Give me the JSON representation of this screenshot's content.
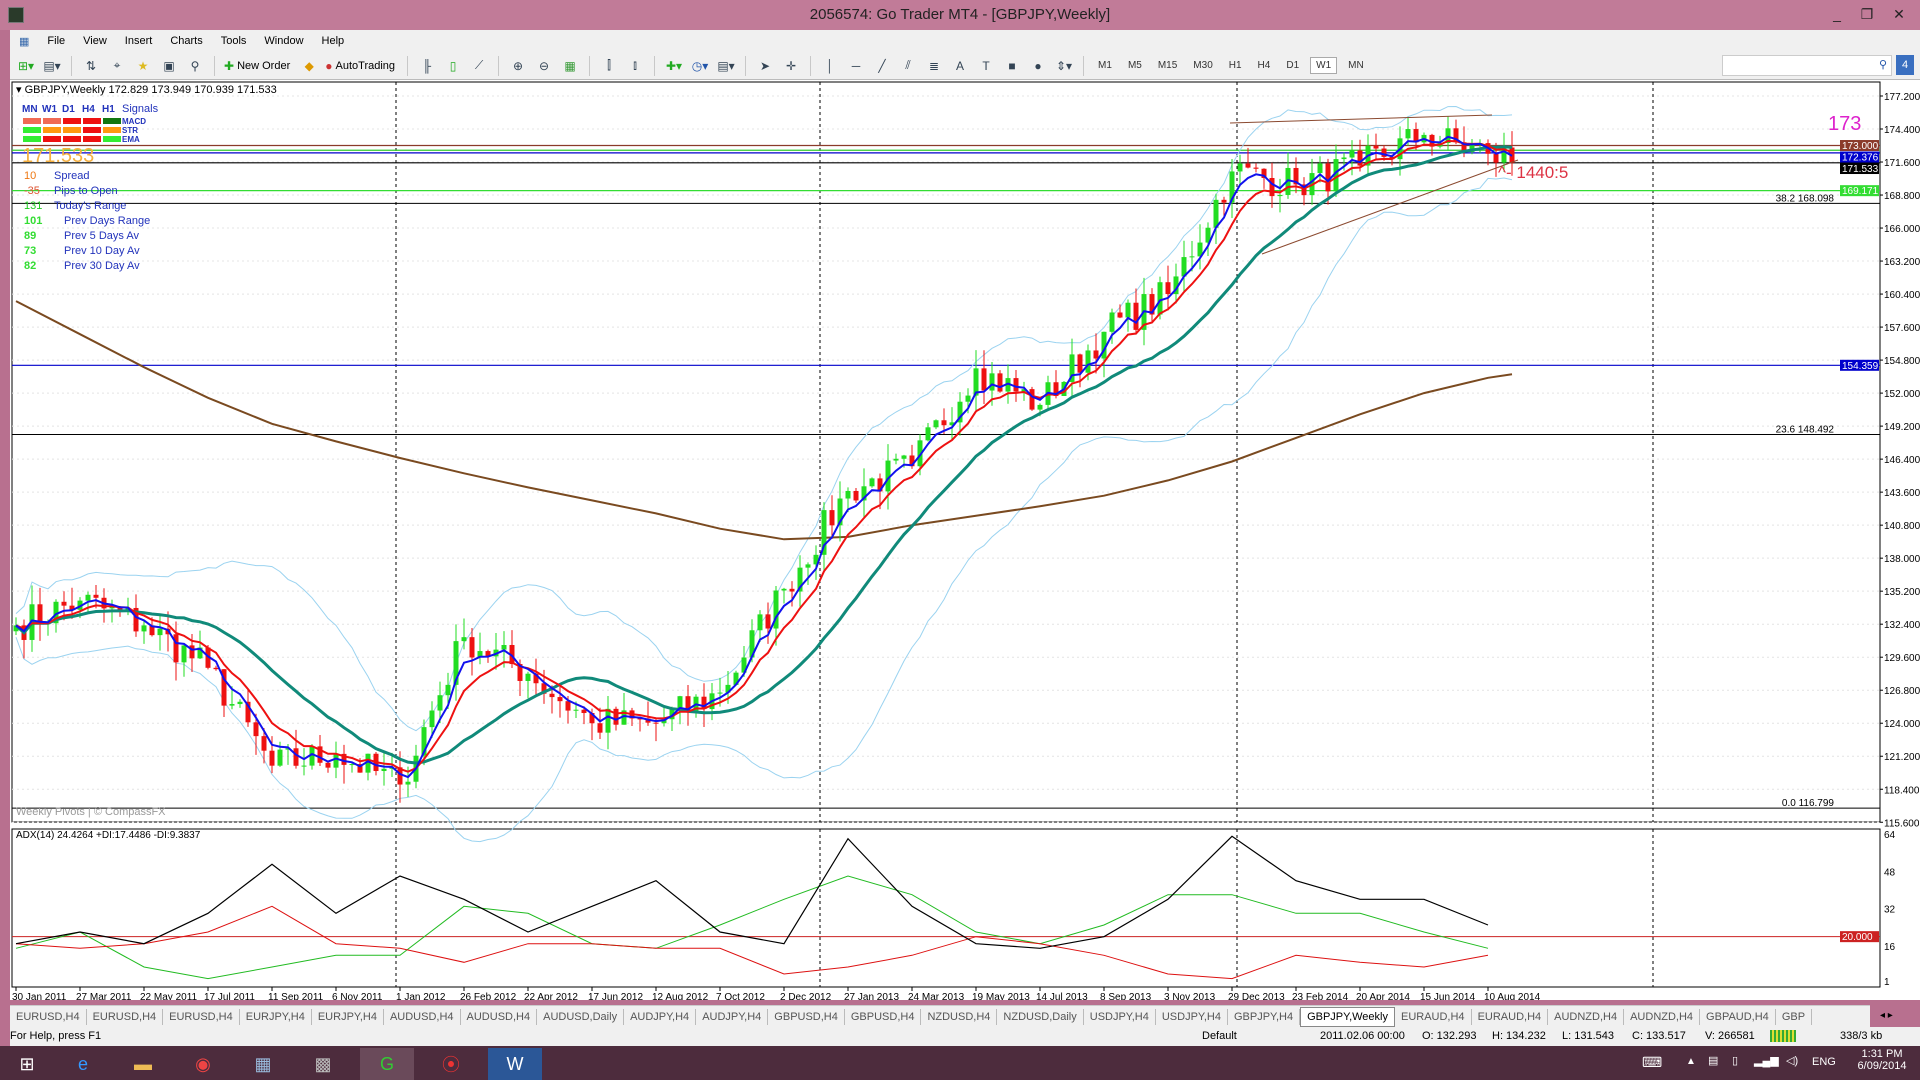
{
  "window": {
    "title": "2056574: Go Trader MT4 - [GBPJPY,Weekly]",
    "controls": [
      "_",
      "❐",
      "✕"
    ]
  },
  "menu": [
    "File",
    "View",
    "Insert",
    "Charts",
    "Tools",
    "Window",
    "Help"
  ],
  "toolbar": {
    "new_order": "New Order",
    "autotrading": "AutoTrading",
    "timeframes": [
      "M1",
      "M5",
      "M15",
      "M30",
      "H1",
      "H4",
      "D1",
      "W1",
      "MN"
    ],
    "active_timeframe": "W1"
  },
  "chart": {
    "header": "GBPJPY,Weekly  172.829 173.949 170.939 171.533",
    "signals": {
      "columns": [
        "MN",
        "W1",
        "D1",
        "H4",
        "H1"
      ],
      "title": "Signals",
      "rows": [
        {
          "name": "MACD",
          "colors": [
            "#f06a55",
            "#f06a55",
            "#ee1111",
            "#ee1111",
            "#117711"
          ]
        },
        {
          "name": "STR",
          "colors": [
            "#33ee33",
            "#ff9911",
            "#ff9911",
            "#ee1111",
            "#ff9911"
          ]
        },
        {
          "name": "EMA",
          "colors": [
            "#33ee33",
            "#ee1111",
            "#ee1111",
            "#ee1111",
            "#33ee33"
          ]
        }
      ]
    },
    "price_big": "171.533",
    "stats": [
      {
        "value": "10",
        "label": "Spread",
        "color": "#ee7711"
      },
      {
        "value": "-35",
        "label": "Pips to Open",
        "color": "#dd5533"
      },
      {
        "value": "131",
        "label": "Today's Range",
        "color": "#22cc22"
      },
      {
        "value": "101",
        "label": "Prev Days Range",
        "color": "#33dd33"
      },
      {
        "value": "89",
        "label": "Prev 5 Days Av",
        "color": "#33dd33"
      },
      {
        "value": "73",
        "label": "Prev 10 Day Av",
        "color": "#33dd33"
      },
      {
        "value": "82",
        "label": "Prev 30 Day Av",
        "color": "#33dd33"
      }
    ],
    "big_label": "173",
    "annotation": "^- 1440:5",
    "watermark": "Weekly Pivots | © CompassFX",
    "fib_labels": [
      {
        "level": "38.2",
        "price": 168.098
      },
      {
        "level": "23.6",
        "price": 148.492
      },
      {
        "level": "0.0",
        "price": 116.799
      }
    ],
    "hlines": [
      {
        "price": 173.0,
        "color": "#8b3a2a",
        "tag": "173.000"
      },
      {
        "price": 172.6,
        "color": "#33cc33",
        "tag": ""
      },
      {
        "price": 172.376,
        "color": "#0000cc",
        "tag": "172.376"
      },
      {
        "price": 171.533,
        "color": "#000000",
        "tag": "171.533"
      },
      {
        "price": 169.171,
        "color": "#33dd33",
        "tag": "169.171"
      },
      {
        "price": 154.359,
        "color": "#0000cc",
        "tag": "154.359"
      }
    ],
    "adx_header": "ADX(14) 24.4264 +DI:17.4486 -DI:9.3837",
    "adx_level": {
      "value": 20,
      "tag": "20.000",
      "color": "#cc2222"
    }
  },
  "chart_data": {
    "type": "candlestick",
    "symbol": "GBPJPY",
    "timeframe": "Weekly",
    "ohlc_last": {
      "open": 172.829,
      "high": 173.949,
      "low": 170.939,
      "close": 171.533
    },
    "x_ticks": [
      "30 Jan 2011",
      "27 Mar 2011",
      "22 May 2011",
      "17 Jul 2011",
      "11 Sep 2011",
      "6 Nov 2011",
      "1 Jan 2012",
      "26 Feb 2012",
      "22 Apr 2012",
      "17 Jun 2012",
      "12 Aug 2012",
      "7 Oct 2012",
      "2 Dec 2012",
      "27 Jan 2013",
      "24 Mar 2013",
      "19 May 2013",
      "14 Jul 2013",
      "8 Sep 2013",
      "3 Nov 2013",
      "29 Dec 2013",
      "23 Feb 2014",
      "20 Apr 2014",
      "15 Jun 2014",
      "10 Aug 2014"
    ],
    "close_at_ticks": [
      132.3,
      134.4,
      132.3,
      128.7,
      120.4,
      121.4,
      118.8,
      131.3,
      128.2,
      124.0,
      124.0,
      126.6,
      135.4,
      143.7,
      145.8,
      154.1,
      151.0,
      157.2,
      160.4,
      170.8,
      169.7,
      171.3,
      173.9,
      172.3
    ],
    "ma200_at_ticks": [
      159.8,
      157.0,
      154.2,
      151.6,
      149.4,
      147.9,
      146.5,
      145.2,
      144.0,
      142.9,
      141.8,
      140.5,
      139.6,
      139.8,
      140.8,
      141.6,
      142.4,
      143.3,
      144.6,
      146.2,
      148.2,
      150.2,
      152.0,
      153.3
    ],
    "y_ticks": [
      177.2,
      174.4,
      171.6,
      168.8,
      166.0,
      163.2,
      160.4,
      157.6,
      154.8,
      152.0,
      149.2,
      146.4,
      143.6,
      140.8,
      138.0,
      135.2,
      132.4,
      129.6,
      126.8,
      124.0,
      121.2,
      118.4,
      115.6
    ],
    "ylim": [
      115.6,
      177.2
    ],
    "adx": {
      "y_ticks": [
        64,
        48,
        32,
        16,
        1
      ],
      "ylim": [
        1,
        64
      ],
      "adx_at_ticks": [
        17,
        22,
        17,
        30,
        51,
        30,
        46,
        36,
        22,
        33,
        44,
        22,
        17,
        62,
        33,
        17,
        15,
        20,
        36,
        63,
        44,
        36,
        36,
        25
      ],
      "plus_di_at_ticks": [
        15,
        22,
        7,
        2,
        7,
        12,
        12,
        33,
        30,
        17,
        15,
        25,
        36,
        46,
        38,
        22,
        17,
        25,
        38,
        38,
        30,
        30,
        22,
        15
      ],
      "minus_di_at_ticks": [
        17,
        15,
        17,
        22,
        33,
        17,
        15,
        9,
        17,
        17,
        15,
        15,
        4,
        7,
        12,
        20,
        17,
        12,
        4,
        2,
        12,
        9,
        7,
        12
      ]
    }
  },
  "tabs": [
    "EURUSD,H4",
    "EURUSD,H4",
    "EURUSD,H4",
    "EURJPY,H4",
    "EURJPY,H4",
    "AUDUSD,H4",
    "AUDUSD,H4",
    "AUDUSD,Daily",
    "AUDJPY,H4",
    "AUDJPY,H4",
    "GBPUSD,H4",
    "GBPUSD,H4",
    "NZDUSD,H4",
    "NZDUSD,Daily",
    "USDJPY,H4",
    "USDJPY,H4",
    "GBPJPY,H4",
    "GBPJPY,Weekly",
    "EURAUD,H4",
    "EURAUD,H4",
    "AUDNZD,H4",
    "AUDNZD,H4",
    "GBPAUD,H4",
    "GBP"
  ],
  "active_tab": "GBPJPY,Weekly",
  "status": {
    "help": "For Help, press F1",
    "profile": "Default",
    "time": "2011.02.06 00:00",
    "open": "O: 132.293",
    "high": "H: 134.232",
    "low": "L: 131.543",
    "close": "C: 133.517",
    "volume": "V: 266581",
    "traffic": "338/3 kb"
  },
  "taskbar": {
    "lang": "ENG",
    "time": "1:31 PM",
    "date": "6/09/2014"
  }
}
